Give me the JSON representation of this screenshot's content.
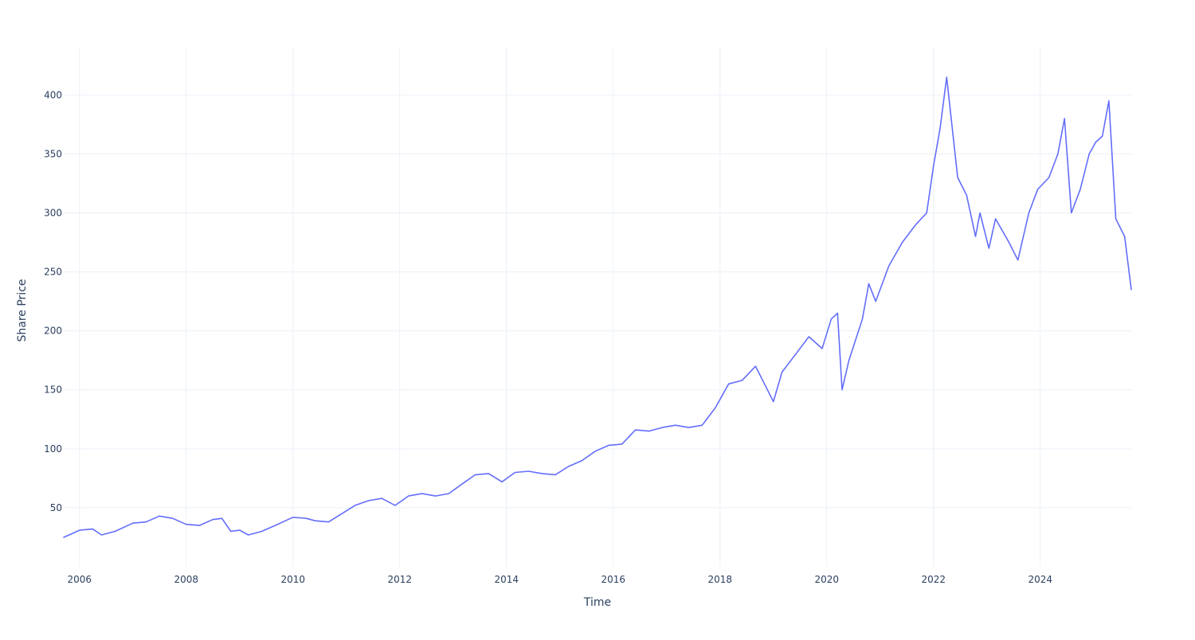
{
  "chart_data": {
    "type": "line",
    "title": "",
    "xlabel": "Time",
    "ylabel": "Share Price",
    "x_ticks": [
      "2006",
      "2008",
      "2010",
      "2012",
      "2014",
      "2016",
      "2018",
      "2020",
      "2022",
      "2024"
    ],
    "y_ticks": [
      50,
      100,
      150,
      200,
      250,
      300,
      350,
      400
    ],
    "xlim": [
      "2005-09-15",
      "2025-09-15"
    ],
    "ylim": [
      0,
      440
    ],
    "grid": true,
    "legend": "none",
    "colors": {
      "line": "#636efa",
      "grid": "#ebf0f8",
      "text": "#2a3f5f"
    },
    "series": [
      {
        "x": [
          "2005-09-15",
          "2006-01-01",
          "2006-04-01",
          "2006-06-01",
          "2006-09-01",
          "2007-01-01",
          "2007-04-01",
          "2007-07-01",
          "2007-10-01",
          "2008-01-01",
          "2008-04-01",
          "2008-07-01",
          "2008-09-01",
          "2008-11-01",
          "2009-01-01",
          "2009-03-01",
          "2009-06-01",
          "2009-09-01",
          "2010-01-01",
          "2010-04-01",
          "2010-06-01",
          "2010-09-01",
          "2010-12-01",
          "2011-03-01",
          "2011-06-01",
          "2011-09-01",
          "2011-12-01",
          "2012-03-01",
          "2012-06-01",
          "2012-09-01",
          "2012-12-01",
          "2013-03-01",
          "2013-06-01",
          "2013-09-01",
          "2013-12-01",
          "2014-03-01",
          "2014-06-01",
          "2014-09-01",
          "2014-12-01",
          "2015-03-01",
          "2015-06-01",
          "2015-09-01",
          "2015-12-01",
          "2016-03-01",
          "2016-06-01",
          "2016-09-01",
          "2016-12-01",
          "2017-03-01",
          "2017-06-01",
          "2017-09-01",
          "2017-12-01",
          "2018-03-01",
          "2018-06-01",
          "2018-09-01",
          "2018-11-01",
          "2019-01-01",
          "2019-03-01",
          "2019-06-01",
          "2019-09-01",
          "2019-12-01",
          "2020-02-01",
          "2020-03-15",
          "2020-04-15",
          "2020-06-01",
          "2020-09-01",
          "2020-10-15",
          "2020-12-01",
          "2021-03-01",
          "2021-06-01",
          "2021-09-01",
          "2021-11-15",
          "2022-01-01",
          "2022-02-15",
          "2022-04-01",
          "2022-06-15",
          "2022-08-15",
          "2022-10-15",
          "2022-11-15",
          "2023-01-15",
          "2023-03-01",
          "2023-06-01",
          "2023-08-01",
          "2023-10-15",
          "2023-12-15",
          "2024-03-01",
          "2024-05-01",
          "2024-06-15",
          "2024-08-01",
          "2024-10-01",
          "2024-12-01",
          "2025-01-15",
          "2025-03-01",
          "2025-04-15",
          "2025-06-01",
          "2025-08-01",
          "2025-09-15"
        ],
        "y": [
          25,
          31,
          32,
          27,
          30,
          37,
          38,
          43,
          41,
          36,
          35,
          40,
          41,
          30,
          31,
          27,
          30,
          35,
          42,
          41,
          39,
          38,
          45,
          52,
          56,
          58,
          52,
          60,
          62,
          60,
          62,
          70,
          78,
          79,
          72,
          80,
          81,
          79,
          78,
          85,
          90,
          98,
          103,
          104,
          116,
          115,
          118,
          120,
          118,
          120,
          135,
          155,
          158,
          170,
          155,
          140,
          165,
          180,
          195,
          185,
          210,
          215,
          150,
          175,
          210,
          240,
          225,
          255,
          275,
          290,
          300,
          340,
          372,
          415,
          330,
          315,
          280,
          300,
          270,
          295,
          275,
          260,
          300,
          320,
          330,
          350,
          380,
          300,
          320,
          350,
          360,
          365,
          395,
          295,
          280,
          235
        ]
      }
    ]
  }
}
